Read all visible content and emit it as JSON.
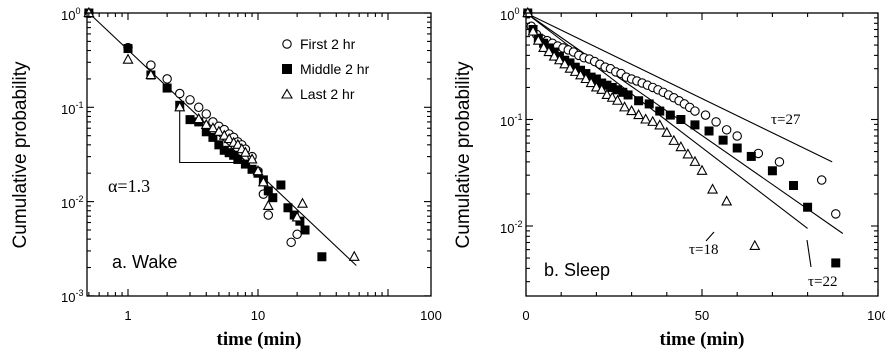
{
  "chart_data": [
    {
      "type": "scatter",
      "panel_label": "a. Wake",
      "xlabel": "time (min)",
      "ylabel": "Cumulative probability",
      "xscale": "log",
      "yscale": "log",
      "xlim": [
        0.5,
        100
      ],
      "ylim": [
        0.001,
        1
      ],
      "xtick_labels": [
        "1",
        "10",
        "100"
      ],
      "ytick_labels": [
        "10",
        "10",
        "10",
        "10"
      ],
      "ytick_exponents": [
        "-3",
        "-2",
        "-1",
        "0"
      ],
      "annotation": "α=1.3",
      "legend_position": "top-right",
      "series": [
        {
          "name": "First 2 hr",
          "marker": "open-circle",
          "x": [
            0.5,
            1.0,
            1.5,
            2.0,
            2.5,
            3.0,
            3.5,
            4.0,
            4.5,
            5.0,
            5.5,
            6.0,
            6.5,
            7.0,
            7.5,
            8.0,
            9.0,
            10.0,
            11.0,
            12.0,
            18.0,
            20.0
          ],
          "y": [
            1.0,
            0.43,
            0.28,
            0.2,
            0.14,
            0.12,
            0.1,
            0.085,
            0.07,
            0.063,
            0.058,
            0.052,
            0.048,
            0.043,
            0.04,
            0.036,
            0.03,
            0.021,
            0.012,
            0.0072,
            0.0037,
            0.0045
          ]
        },
        {
          "name": "Middle 2 hr",
          "marker": "filled-square",
          "x": [
            0.5,
            1.0,
            1.5,
            2.0,
            2.5,
            3.0,
            3.5,
            4.0,
            4.5,
            5.0,
            5.5,
            6.0,
            6.5,
            7.0,
            8.0,
            9.0,
            10.0,
            11.0,
            12.0,
            13.0,
            15.0,
            17.0,
            19.0,
            21.0,
            23.0,
            31.0
          ],
          "y": [
            1.0,
            0.42,
            0.22,
            0.16,
            0.105,
            0.074,
            0.07,
            0.055,
            0.048,
            0.04,
            0.035,
            0.033,
            0.031,
            0.028,
            0.025,
            0.022,
            0.02,
            0.017,
            0.013,
            0.011,
            0.015,
            0.0086,
            0.0072,
            0.0062,
            0.005,
            0.0026
          ]
        },
        {
          "name": "Last 2 hr",
          "marker": "open-triangle",
          "x": [
            0.5,
            1.0,
            1.5,
            2.5,
            3.5,
            4.0,
            4.5,
            5.0,
            5.5,
            6.0,
            6.5,
            7.0,
            7.5,
            8.0,
            9.0,
            10.0,
            11.0,
            12.0,
            20.0,
            22.0,
            55.0
          ],
          "y": [
            1.0,
            0.32,
            0.22,
            0.1,
            0.075,
            0.065,
            0.06,
            0.055,
            0.05,
            0.046,
            0.042,
            0.04,
            0.036,
            0.033,
            0.028,
            0.021,
            0.016,
            0.009,
            0.0068,
            0.0095,
            0.0026
          ]
        }
      ],
      "fit_lines": [
        {
          "points": [
            [
              0.5,
              1.0
            ],
            [
              57,
              0.0021
            ]
          ]
        },
        {
          "points": [
            [
              2.5,
              0.105
            ],
            [
              2.5,
              0.026
            ],
            [
              7.5,
              0.026
            ]
          ]
        }
      ]
    },
    {
      "type": "scatter",
      "panel_label": "b. Sleep",
      "xlabel": "time (min)",
      "ylabel": "Cumulative probability",
      "xscale": "linear",
      "yscale": "log",
      "xlim": [
        0,
        100
      ],
      "ylim": [
        0.001,
        1
      ],
      "xticks": [
        0,
        50,
        100
      ],
      "xtick_labels": [
        "0",
        "50",
        "100"
      ],
      "ytick_labels": [
        "10",
        "10",
        "10"
      ],
      "ytick_exponents": [
        "-2",
        "-1",
        "0"
      ],
      "annotations": [
        "τ=27",
        "τ=18",
        "τ=22"
      ],
      "series": [
        {
          "name": "First 2 hr",
          "marker": "open-circle",
          "x": [
            0.5,
            1.5,
            3,
            4.5,
            6,
            7.5,
            9,
            10.5,
            12,
            13.5,
            15,
            16.5,
            18,
            19.5,
            21,
            22.5,
            24,
            25.5,
            27,
            28.5,
            30,
            31.5,
            33,
            34.5,
            36,
            37.5,
            39,
            40.5,
            42,
            43.5,
            45,
            46.5,
            48,
            51,
            54,
            57,
            60,
            66,
            72,
            84,
            88
          ],
          "y": [
            1.0,
            0.75,
            0.63,
            0.57,
            0.55,
            0.52,
            0.49,
            0.47,
            0.45,
            0.43,
            0.4,
            0.38,
            0.37,
            0.35,
            0.33,
            0.31,
            0.3,
            0.28,
            0.27,
            0.25,
            0.24,
            0.23,
            0.22,
            0.21,
            0.2,
            0.19,
            0.18,
            0.17,
            0.16,
            0.15,
            0.14,
            0.13,
            0.12,
            0.11,
            0.095,
            0.08,
            0.07,
            0.048,
            0.04,
            0.027,
            0.013
          ]
        },
        {
          "name": "Middle 2 hr",
          "marker": "filled-square",
          "x": [
            0.5,
            2,
            3.5,
            5,
            6.5,
            8,
            9.5,
            11,
            12.5,
            14,
            15.5,
            17,
            18.5,
            20,
            21.5,
            23,
            24.5,
            26,
            27.5,
            29,
            32,
            35,
            38,
            41,
            44,
            48,
            52,
            56,
            60,
            64,
            70,
            76,
            80,
            88
          ],
          "y": [
            1.0,
            0.7,
            0.58,
            0.52,
            0.47,
            0.43,
            0.39,
            0.36,
            0.34,
            0.31,
            0.29,
            0.27,
            0.25,
            0.24,
            0.22,
            0.21,
            0.2,
            0.19,
            0.18,
            0.17,
            0.15,
            0.14,
            0.12,
            0.11,
            0.1,
            0.089,
            0.078,
            0.064,
            0.054,
            0.045,
            0.033,
            0.024,
            0.015,
            0.0045
          ]
        },
        {
          "name": "Last 2 hr",
          "marker": "open-triangle",
          "x": [
            0.5,
            2,
            3.5,
            5,
            6.5,
            8,
            9.5,
            11,
            12.5,
            14,
            15.5,
            17,
            18.5,
            20,
            21.5,
            23,
            24.5,
            26,
            28,
            30,
            32,
            34,
            36,
            38,
            40,
            42,
            44,
            46,
            48,
            50,
            53,
            57,
            65
          ],
          "y": [
            1.0,
            0.67,
            0.55,
            0.47,
            0.43,
            0.39,
            0.36,
            0.33,
            0.3,
            0.28,
            0.26,
            0.24,
            0.22,
            0.2,
            0.19,
            0.17,
            0.16,
            0.15,
            0.13,
            0.12,
            0.11,
            0.1,
            0.095,
            0.088,
            0.075,
            0.063,
            0.055,
            0.047,
            0.04,
            0.033,
            0.022,
            0.017,
            0.0065
          ]
        }
      ],
      "fit_lines": [
        {
          "label": "τ=27",
          "points": [
            [
              0,
              1.0
            ],
            [
              87,
              0.04
            ]
          ]
        },
        {
          "label": "τ=22",
          "points": [
            [
              0,
              1.0
            ],
            [
              90,
              0.0085
            ]
          ]
        },
        {
          "label": "τ=18",
          "points": [
            [
              0,
              1.0
            ],
            [
              80,
              0.0095
            ]
          ]
        }
      ]
    }
  ]
}
